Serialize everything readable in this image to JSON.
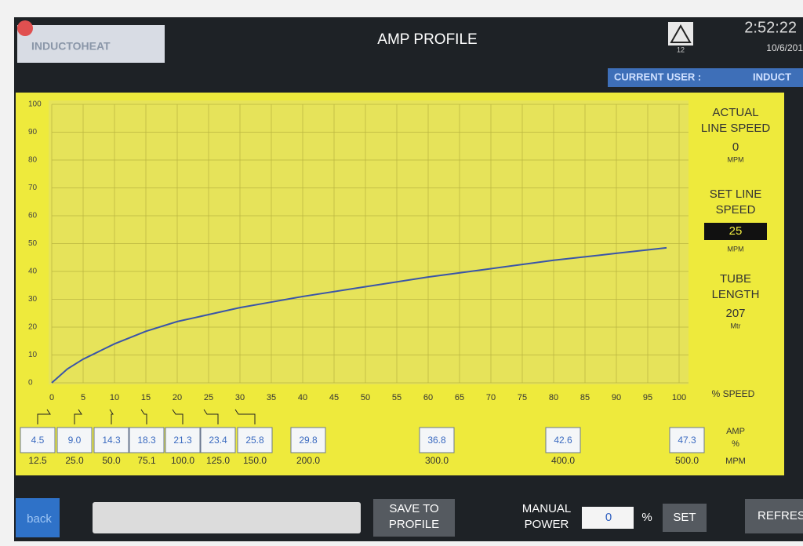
{
  "header": {
    "logo": "INDUCTOHEAT",
    "title": "AMP PROFILE",
    "alarm_count": "12",
    "time": "2:52:22",
    "date": "10/6/201",
    "current_user_label": "CURRENT USER :",
    "current_user": "INDUCT"
  },
  "chart_data": {
    "type": "line",
    "x_label": "% SPEED",
    "x": [
      0,
      2.5,
      5,
      10,
      15,
      20,
      25,
      30,
      35,
      40,
      50,
      60,
      70,
      80,
      90,
      98
    ],
    "series": [
      {
        "color": "#3a55a8",
        "values": [
          0,
          5,
          8.5,
          14,
          18.5,
          22,
          24.5,
          27,
          29,
          31,
          34.5,
          38,
          41,
          44,
          46.5,
          48.5
        ]
      }
    ],
    "xlim": [
      0,
      100
    ],
    "xticks": [
      0,
      5,
      10,
      15,
      20,
      25,
      30,
      35,
      40,
      45,
      50,
      55,
      60,
      65,
      70,
      75,
      80,
      85,
      90,
      95,
      100
    ],
    "ylim": [
      0,
      100
    ],
    "yticks": [
      0,
      10,
      20,
      30,
      40,
      50,
      60,
      70,
      80,
      90,
      100
    ],
    "grid": true
  },
  "side_panel": {
    "actual_label": [
      "ACTUAL",
      "LINE SPEED"
    ],
    "actual_value": "0",
    "actual_unit": "MPM",
    "set_label": [
      "SET LINE",
      "SPEED"
    ],
    "set_value": "25",
    "set_unit": "MPM",
    "tube_label": [
      "TUBE",
      "LENGTH"
    ],
    "tube_value": "207",
    "tube_unit": "Mtr"
  },
  "profile": {
    "amp_label": [
      "AMP",
      "%"
    ],
    "mpm_label": "MPM",
    "amps": [
      "4.5",
      "9.0",
      "14.3",
      "18.3",
      "21.3",
      "23.4",
      "25.8",
      "29.8",
      "36.8",
      "42.6",
      "47.3"
    ],
    "speeds": [
      "12.5",
      "25.0",
      "50.0",
      "75.1",
      "100.0",
      "125.0",
      "150.0",
      "200.0",
      "300.0",
      "400.0",
      "500.0"
    ]
  },
  "footer": {
    "back": "back",
    "save": [
      "SAVE TO",
      "PROFILE"
    ],
    "manual": [
      "MANUAL",
      "POWER"
    ],
    "manual_value": "0",
    "percent": "%",
    "set": "SET",
    "refresh": "REFRES"
  }
}
